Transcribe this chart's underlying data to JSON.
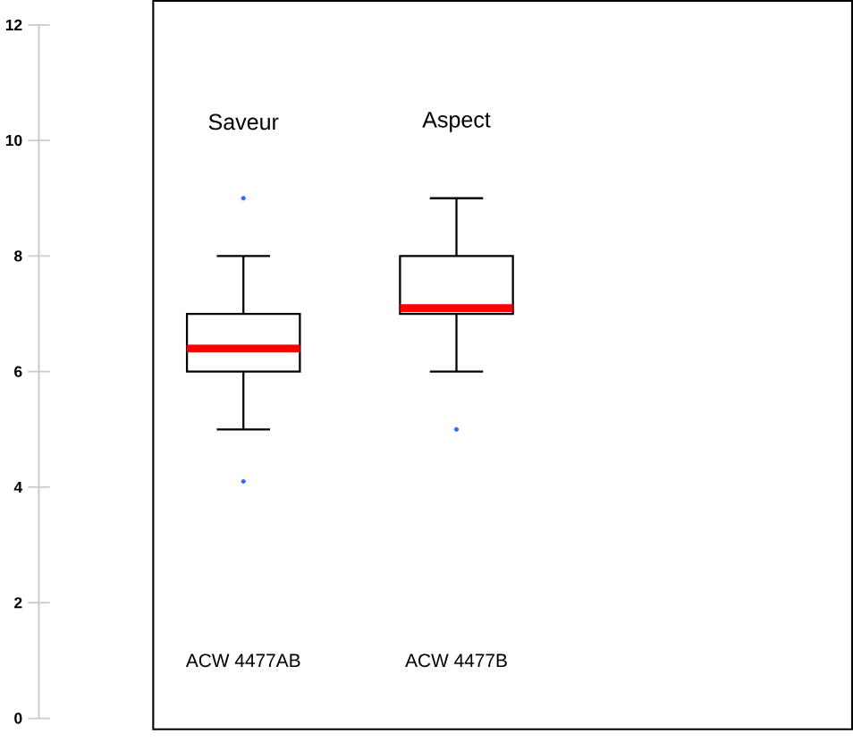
{
  "chart_data": {
    "type": "box",
    "categories": [
      "ACW 4477AB",
      "ACW 4477B"
    ],
    "boxes": [
      {
        "low": 5,
        "q1": 6,
        "median": 6.4,
        "q3": 7,
        "high": 8,
        "outliers": [
          9,
          4.1
        ]
      },
      {
        "low": 6,
        "q1": 7,
        "median": 7.1,
        "q3": 8,
        "high": 9,
        "outliers": [
          5
        ]
      }
    ],
    "color": "#000000",
    "ylim": [
      0,
      12
    ],
    "yticks": [
      0,
      2,
      4,
      6,
      8,
      10,
      12
    ],
    "grid": false,
    "annotations": [
      "Saveur",
      "Aspect"
    ]
  }
}
